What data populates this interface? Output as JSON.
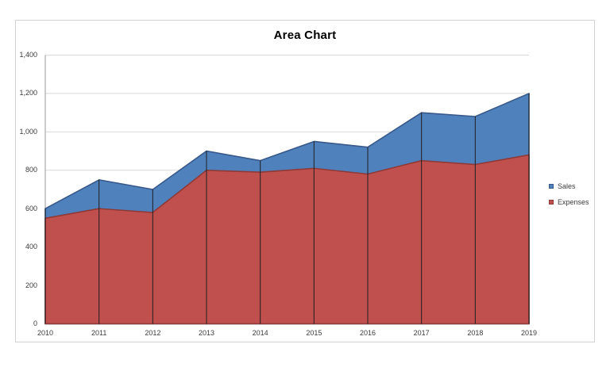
{
  "chart_data": {
    "type": "area",
    "stacked": false,
    "title": "Area Chart",
    "categories": [
      "2010",
      "2011",
      "2012",
      "2013",
      "2014",
      "2015",
      "2016",
      "2017",
      "2018",
      "2019"
    ],
    "series": [
      {
        "name": "Sales",
        "color": "#4f81bd",
        "border_color": "#38598a",
        "values": [
          600,
          750,
          700,
          900,
          850,
          950,
          920,
          1100,
          1080,
          1200
        ]
      },
      {
        "name": "Expenses",
        "color": "#c0504d",
        "border_color": "#8e3a38",
        "values": [
          550,
          600,
          580,
          800,
          790,
          810,
          780,
          850,
          830,
          880
        ]
      }
    ],
    "draw_order_note": "Expenses series drawn in front of Sales (overlapping, not stacked)",
    "xlabel": "",
    "ylabel": "",
    "ylim": [
      0,
      1400
    ],
    "ytick_step": 200,
    "ytick_labels": [
      "0",
      "200",
      "400",
      "600",
      "800",
      "1,000",
      "1,200",
      "1,400"
    ],
    "grid": true,
    "drop_lines": true,
    "legend_position": "right",
    "colors": {
      "gridline": "#d9d9d9",
      "axis_line": "#9a9a9a",
      "drop_line": "#1f1f1f",
      "tick_text": "#3b3b3b",
      "title_text": "#000000",
      "chart_border": "#d2d2d2",
      "background": "#ffffff"
    }
  }
}
